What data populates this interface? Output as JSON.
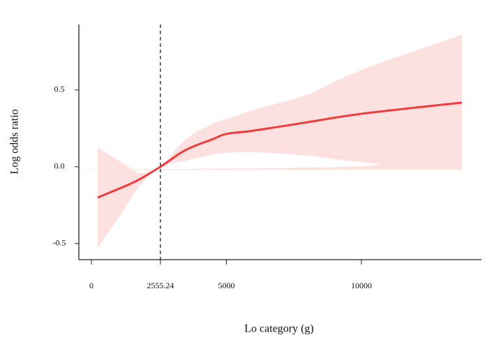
{
  "chart_data": {
    "type": "line",
    "xlabel": "Lo  category (g)",
    "ylabel": "Log odds ratio",
    "x": [
      233,
      1200,
      1800,
      2555.24,
      3500,
      4500,
      5000,
      6000,
      8000,
      10000,
      13720
    ],
    "values": [
      -0.2,
      -0.13,
      -0.08,
      0,
      0.11,
      0.18,
      0.214,
      0.235,
      0.29,
      0.345,
      0.418
    ],
    "upper": [
      0.123,
      0.02,
      -0.04,
      0,
      0.18,
      0.28,
      0.31,
      0.37,
      0.47,
      0.63,
      0.86
    ],
    "lower": [
      -0.527,
      -0.28,
      -0.12,
      0,
      0.04,
      0.08,
      0.09,
      0.095,
      0.073,
      0.03,
      -0.02
    ],
    "color": "#f03c3c",
    "band_color": "#fde0e0",
    "vline": 2555.24,
    "xlim": [
      -465,
      14445
    ],
    "ylim": [
      -0.605,
      0.927
    ],
    "xticks": [
      0,
      2555.24,
      5000,
      10000
    ],
    "yticks": [
      -0.5,
      {
        "value": 0,
        "label": "0.0"
      },
      0.5
    ]
  }
}
